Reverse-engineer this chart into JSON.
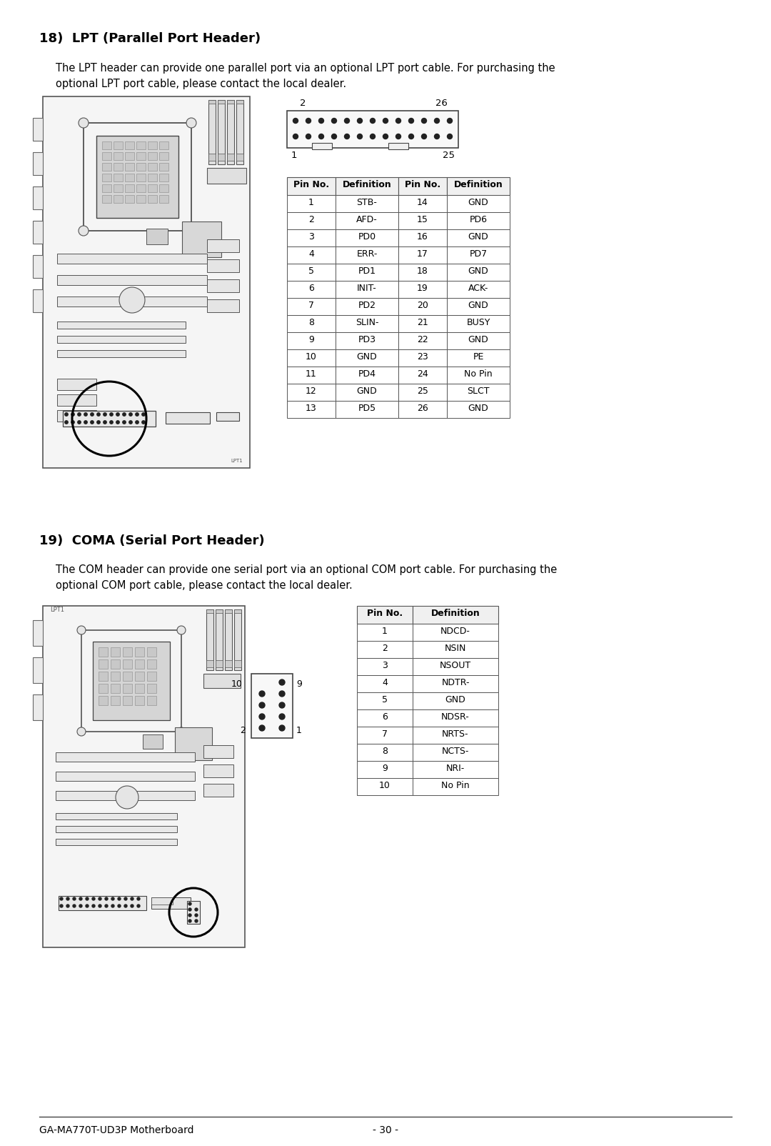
{
  "bg_color": "#ffffff",
  "section1_title": "18)  LPT (Parallel Port Header)",
  "section1_body1": "The LPT header can provide one parallel port via an optional LPT port cable. For purchasing the",
  "section1_body2": "optional LPT port cable, please contact the local dealer.",
  "section2_title": "19)  COMA (Serial Port Header)",
  "section2_body1": "The COM header can provide one serial port via an optional COM port cable. For purchasing the",
  "section2_body2": "optional COM port cable, please contact the local dealer.",
  "lpt_table_headers": [
    "Pin No.",
    "Definition",
    "Pin No.",
    "Definition"
  ],
  "lpt_table_rows": [
    [
      "1",
      "STB-",
      "14",
      "GND"
    ],
    [
      "2",
      "AFD-",
      "15",
      "PD6"
    ],
    [
      "3",
      "PD0",
      "16",
      "GND"
    ],
    [
      "4",
      "ERR-",
      "17",
      "PD7"
    ],
    [
      "5",
      "PD1",
      "18",
      "GND"
    ],
    [
      "6",
      "INIT-",
      "19",
      "ACK-"
    ],
    [
      "7",
      "PD2",
      "20",
      "GND"
    ],
    [
      "8",
      "SLIN-",
      "21",
      "BUSY"
    ],
    [
      "9",
      "PD3",
      "22",
      "GND"
    ],
    [
      "10",
      "GND",
      "23",
      "PE"
    ],
    [
      "11",
      "PD4",
      "24",
      "No Pin"
    ],
    [
      "12",
      "GND",
      "25",
      "SLCT"
    ],
    [
      "13",
      "PD5",
      "26",
      "GND"
    ]
  ],
  "com_table_headers": [
    "Pin No.",
    "Definition"
  ],
  "com_table_rows": [
    [
      "1",
      "NDCD-"
    ],
    [
      "2",
      "NSIN"
    ],
    [
      "3",
      "NSOUT"
    ],
    [
      "4",
      "NDTR-"
    ],
    [
      "5",
      "GND"
    ],
    [
      "6",
      "NDSR-"
    ],
    [
      "7",
      "NRTS-"
    ],
    [
      "8",
      "NCTS-"
    ],
    [
      "9",
      "NRI-"
    ],
    [
      "10",
      "No Pin"
    ]
  ],
  "footer_left": "GA-MA770T-UD3P Motherboard",
  "footer_center": "- 30 -"
}
